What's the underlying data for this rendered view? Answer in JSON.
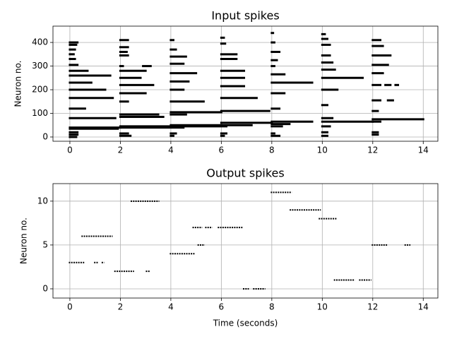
{
  "chart_data": [
    {
      "type": "raster",
      "title": "Input spikes",
      "ylabel": "Neuron no.",
      "grid": true,
      "color": "#000000",
      "xlim": [
        -0.67,
        14.58
      ],
      "xticks": [
        0,
        2,
        4,
        6,
        8,
        10,
        12,
        14
      ],
      "ylim": [
        -18,
        469
      ],
      "yticks": [
        0,
        100,
        200,
        300,
        400
      ],
      "runs": [
        [
          0,
          0.3,
          400
        ],
        [
          0,
          0.25,
          390
        ],
        [
          0,
          0.2,
          370
        ],
        [
          0,
          0.15,
          350
        ],
        [
          0,
          0.2,
          330
        ],
        [
          0,
          0.3,
          305
        ],
        [
          0,
          0.7,
          280
        ],
        [
          0,
          1.6,
          260
        ],
        [
          0,
          0.85,
          230
        ],
        [
          0,
          1.4,
          200
        ],
        [
          0,
          1.7,
          165
        ],
        [
          0,
          0.6,
          120
        ],
        [
          0,
          1.8,
          80
        ],
        [
          0,
          2.0,
          40
        ],
        [
          0,
          1.9,
          35
        ],
        [
          0,
          0.3,
          20
        ],
        [
          0,
          0.3,
          10
        ],
        [
          0,
          0.25,
          0
        ],
        [
          2,
          2.3,
          410
        ],
        [
          2,
          2.3,
          380
        ],
        [
          2,
          2.25,
          360
        ],
        [
          2,
          2.3,
          345
        ],
        [
          2,
          2.1,
          300
        ],
        [
          2.9,
          3.2,
          300
        ],
        [
          2,
          3.0,
          280
        ],
        [
          2,
          2.8,
          250
        ],
        [
          2,
          3.3,
          220
        ],
        [
          2,
          3.0,
          185
        ],
        [
          2,
          2.3,
          150
        ],
        [
          2,
          3.5,
          95
        ],
        [
          2,
          3.7,
          85
        ],
        [
          2,
          4.0,
          45
        ],
        [
          2,
          4.5,
          40
        ],
        [
          2,
          2.3,
          15
        ],
        [
          2,
          2.4,
          5
        ],
        [
          4,
          4.1,
          410
        ],
        [
          4,
          4.2,
          370
        ],
        [
          4,
          4.6,
          340
        ],
        [
          4,
          4.5,
          310
        ],
        [
          4,
          5.0,
          270
        ],
        [
          4,
          4.7,
          235
        ],
        [
          4,
          4.5,
          200
        ],
        [
          4,
          5.3,
          150
        ],
        [
          4,
          6.0,
          105
        ],
        [
          4,
          4.6,
          95
        ],
        [
          4,
          6.0,
          50
        ],
        [
          4,
          6.2,
          45
        ],
        [
          4,
          4.2,
          15
        ],
        [
          4,
          4.1,
          5
        ],
        [
          6,
          6.1,
          420
        ],
        [
          6,
          6.15,
          395
        ],
        [
          6,
          6.6,
          350
        ],
        [
          6,
          6.6,
          330
        ],
        [
          6,
          6.9,
          280
        ],
        [
          6,
          6.9,
          250
        ],
        [
          6,
          6.9,
          215
        ],
        [
          6,
          7.4,
          165
        ],
        [
          6,
          7.9,
          110
        ],
        [
          6,
          8.0,
          60
        ],
        [
          6,
          7.2,
          50
        ],
        [
          6,
          6.2,
          15
        ],
        [
          6,
          6.1,
          5
        ],
        [
          8,
          8.05,
          440
        ],
        [
          8,
          8.1,
          400
        ],
        [
          8,
          8.3,
          360
        ],
        [
          8,
          8.2,
          325
        ],
        [
          8,
          8.1,
          300
        ],
        [
          8,
          8.5,
          265
        ],
        [
          8,
          9.6,
          230
        ],
        [
          8,
          8.5,
          185
        ],
        [
          8,
          8.3,
          120
        ],
        [
          8,
          9.6,
          65
        ],
        [
          8,
          8.7,
          55
        ],
        [
          8,
          8.4,
          45
        ],
        [
          8,
          8.1,
          15
        ],
        [
          8,
          8.3,
          5
        ],
        [
          10,
          10.1,
          435
        ],
        [
          10,
          10.2,
          415
        ],
        [
          10,
          10.3,
          390
        ],
        [
          10,
          10.3,
          345
        ],
        [
          10,
          10.4,
          315
        ],
        [
          10,
          10.5,
          285
        ],
        [
          10,
          11.6,
          250
        ],
        [
          10,
          10.6,
          200
        ],
        [
          10,
          10.2,
          135
        ],
        [
          10,
          10.4,
          80
        ],
        [
          10,
          12.0,
          65
        ],
        [
          10,
          10.3,
          45
        ],
        [
          10,
          10.2,
          20
        ],
        [
          10,
          10.2,
          5
        ],
        [
          12,
          12.3,
          410
        ],
        [
          12,
          12.4,
          385
        ],
        [
          12,
          12.7,
          345
        ],
        [
          12,
          12.6,
          305
        ],
        [
          12,
          12.4,
          270
        ],
        [
          12,
          12.3,
          220
        ],
        [
          12.5,
          12.7,
          220
        ],
        [
          12.9,
          13.0,
          220
        ],
        [
          12,
          12.3,
          155
        ],
        [
          12.6,
          12.8,
          155
        ],
        [
          12,
          12.2,
          110
        ],
        [
          12,
          14.0,
          75
        ],
        [
          12,
          12.3,
          65
        ],
        [
          12,
          12.2,
          20
        ],
        [
          12,
          12.2,
          10
        ]
      ]
    },
    {
      "type": "raster",
      "title": "Output spikes",
      "xlabel": "Time (seconds)",
      "ylabel": "Neuron no.",
      "grid": true,
      "color": "#000000",
      "xlim": [
        -0.67,
        14.58
      ],
      "xticks": [
        0,
        2,
        4,
        6,
        8,
        10,
        12,
        14
      ],
      "ylim": [
        -1.05,
        12.0
      ],
      "yticks": [
        0,
        5,
        10
      ],
      "runs": [
        [
          0,
          0.55,
          3
        ],
        [
          1.0,
          1.1,
          3
        ],
        [
          1.3,
          1.32,
          3
        ],
        [
          0.5,
          1.65,
          6
        ],
        [
          1.8,
          2.5,
          2
        ],
        [
          3.05,
          3.15,
          2
        ],
        [
          2.45,
          3.5,
          10
        ],
        [
          4.0,
          4.9,
          4
        ],
        [
          4.9,
          5.2,
          7
        ],
        [
          5.4,
          5.6,
          7
        ],
        [
          5.9,
          6.8,
          7
        ],
        [
          5.1,
          5.3,
          5
        ],
        [
          6.9,
          7.05,
          0
        ],
        [
          7.3,
          7.7,
          0
        ],
        [
          8.0,
          8.75,
          11
        ],
        [
          8.75,
          9.9,
          9
        ],
        [
          9.9,
          10.55,
          8
        ],
        [
          10.5,
          11.25,
          1
        ],
        [
          11.5,
          11.9,
          1
        ],
        [
          12.0,
          12.55,
          5
        ],
        [
          13.3,
          13.45,
          5
        ]
      ]
    }
  ]
}
